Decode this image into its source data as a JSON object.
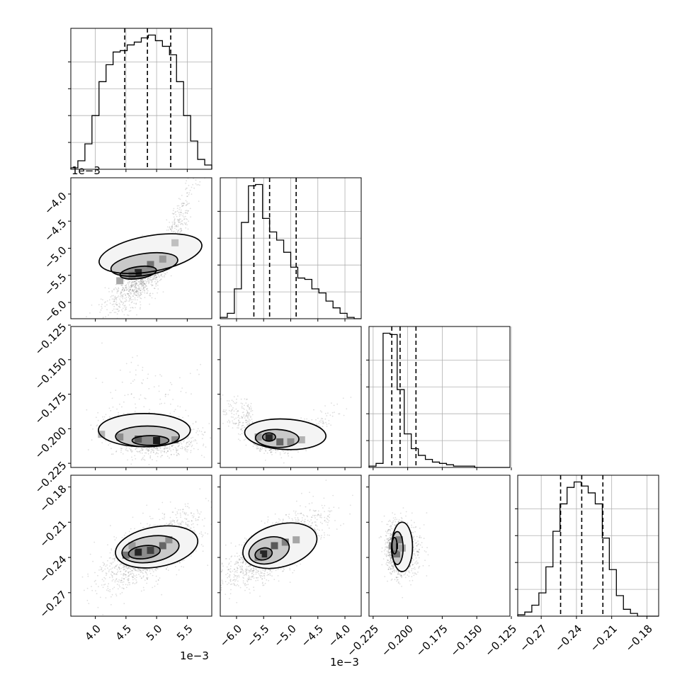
{
  "chart_data": {
    "type": "corner",
    "grid": true,
    "variables": [
      {
        "range": [
          0.0036,
          0.0059
        ],
        "ticks": [
          0.004,
          0.0045,
          0.005,
          0.0055
        ],
        "tick_labels": [
          "4.0",
          "4.5",
          "5.0",
          "5.5"
        ],
        "offset_label": "1e−3",
        "quantiles": [
          0.00448,
          0.00485,
          0.00523
        ],
        "hist": {
          "edges_start": 0.0036,
          "edges_step": 0.000115,
          "counts": [
            1,
            6,
            18,
            38,
            62,
            74,
            83,
            84,
            88,
            90,
            93,
            95,
            91,
            87,
            81,
            62,
            38,
            20,
            7,
            3
          ]
        }
      },
      {
        "range": [
          -0.0063,
          -0.0037
        ],
        "ticks": [
          -0.006,
          -0.0055,
          -0.005,
          -0.0045,
          -0.004
        ],
        "tick_labels": [
          "−6.0",
          "−5.5",
          "−5.0",
          "−4.5",
          "−4.0"
        ],
        "offset_label": "1e−3",
        "quantiles": [
          -0.00568,
          -0.00539,
          -0.0049
        ],
        "hist": {
          "edges_start": -0.0063,
          "edges_step": 0.00013,
          "counts": [
            1,
            4,
            22,
            71,
            98,
            99,
            74,
            64,
            58,
            49,
            38,
            30,
            29,
            22,
            19,
            13,
            8,
            4,
            1,
            0
          ]
        }
      },
      {
        "range": [
          -0.228,
          -0.126
        ],
        "ticks": [
          -0.225,
          -0.2,
          -0.175,
          -0.15,
          -0.125
        ],
        "tick_labels": [
          "−0.225",
          "−0.200",
          "−0.175",
          "−0.150",
          "−0.125"
        ],
        "quantiles": [
          -0.2115,
          -0.2055,
          -0.194
        ],
        "hist": {
          "edges_start": -0.228,
          "edges_step": 0.0051,
          "counts": [
            1,
            3,
            100,
            99,
            58,
            25,
            14,
            9,
            6,
            4,
            3,
            2,
            1,
            1,
            1,
            0,
            0,
            0,
            0,
            0
          ]
        }
      },
      {
        "range": [
          -0.29,
          -0.17
        ],
        "ticks": [
          -0.27,
          -0.24,
          -0.21,
          -0.18
        ],
        "tick_labels": [
          "−0.27",
          "−0.24",
          "−0.21",
          "−0.18"
        ],
        "quantiles": [
          -0.2535,
          -0.2355,
          -0.2175
        ],
        "hist": {
          "edges_start": -0.29,
          "edges_step": 0.006,
          "counts": [
            1,
            3,
            8,
            17,
            36,
            62,
            82,
            94,
            98,
            95,
            90,
            82,
            57,
            34,
            15,
            5,
            2,
            0,
            0,
            0
          ]
        }
      }
    ],
    "y_offset_labels": [
      "1e−3"
    ],
    "x_offset_labels": [
      "1e−3",
      "1e−3"
    ]
  }
}
